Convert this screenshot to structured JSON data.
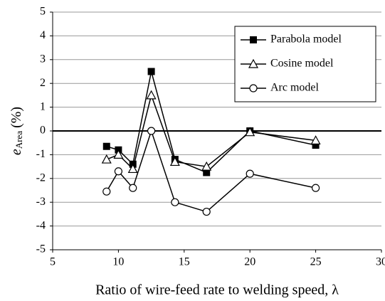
{
  "chart_data": {
    "type": "line",
    "x_label": "Ratio of wire-feed rate to welding speed, λ",
    "y_label": {
      "main": "e",
      "sub": "Area",
      "unit": "(%)"
    },
    "x": [
      9.1,
      10,
      11.1,
      12.5,
      14.3,
      16.7,
      20,
      25
    ],
    "series": [
      {
        "name": "Parabola model",
        "color": "#000000",
        "marker": "square",
        "values": [
          -0.65,
          -0.8,
          -1.4,
          2.5,
          -1.2,
          -1.75,
          0,
          -0.6
        ]
      },
      {
        "name": "Cosine model",
        "color": "#000000",
        "marker": "triangle",
        "values": [
          -1.2,
          -1.0,
          -1.6,
          1.5,
          -1.3,
          -1.5,
          -0.05,
          -0.4
        ]
      },
      {
        "name": "Arc model",
        "color": "#000000",
        "marker": "circle",
        "values": [
          -2.55,
          -1.7,
          -2.4,
          0,
          -3.0,
          -3.4,
          -1.8,
          -2.4
        ]
      }
    ],
    "xlim": [
      5,
      30
    ],
    "xticks": [
      5,
      10,
      15,
      20,
      25,
      30
    ],
    "ylim": [
      -5,
      5
    ],
    "yticks": [
      -5,
      -4,
      -3,
      -2,
      -1,
      0,
      1,
      2,
      3,
      4,
      5
    ],
    "grid": true,
    "legend": "upper right"
  }
}
